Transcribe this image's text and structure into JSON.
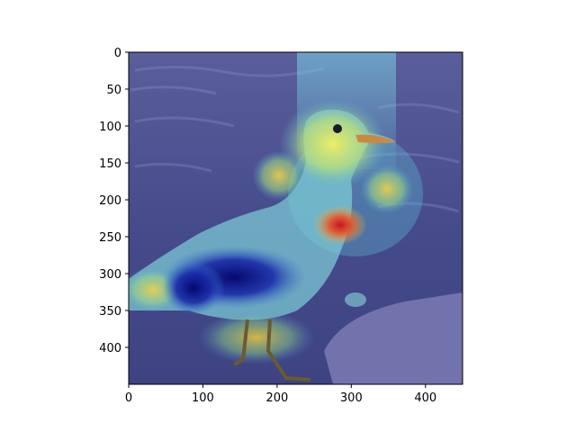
{
  "figure": {
    "image_subject": "seagull on beach with attention heatmap overlay",
    "colormap": "jet",
    "image_width_data": 450,
    "image_height_data": 450
  },
  "axes": {
    "x_ticks": [
      0,
      100,
      200,
      300,
      400
    ],
    "y_ticks": [
      0,
      50,
      100,
      150,
      200,
      250,
      300,
      350,
      400
    ],
    "xlim": [
      0,
      450
    ],
    "ylim": [
      450,
      0
    ]
  },
  "colors": {
    "water_tint": "#4a4f8e",
    "sand_tint": "#6a6aa6",
    "heat_low": "#2a2fb8",
    "heat_mid": "#48e0d0",
    "heat_warm": "#f0e84a",
    "heat_hot": "#d82a2a",
    "heat_core": "#0a0a80"
  }
}
